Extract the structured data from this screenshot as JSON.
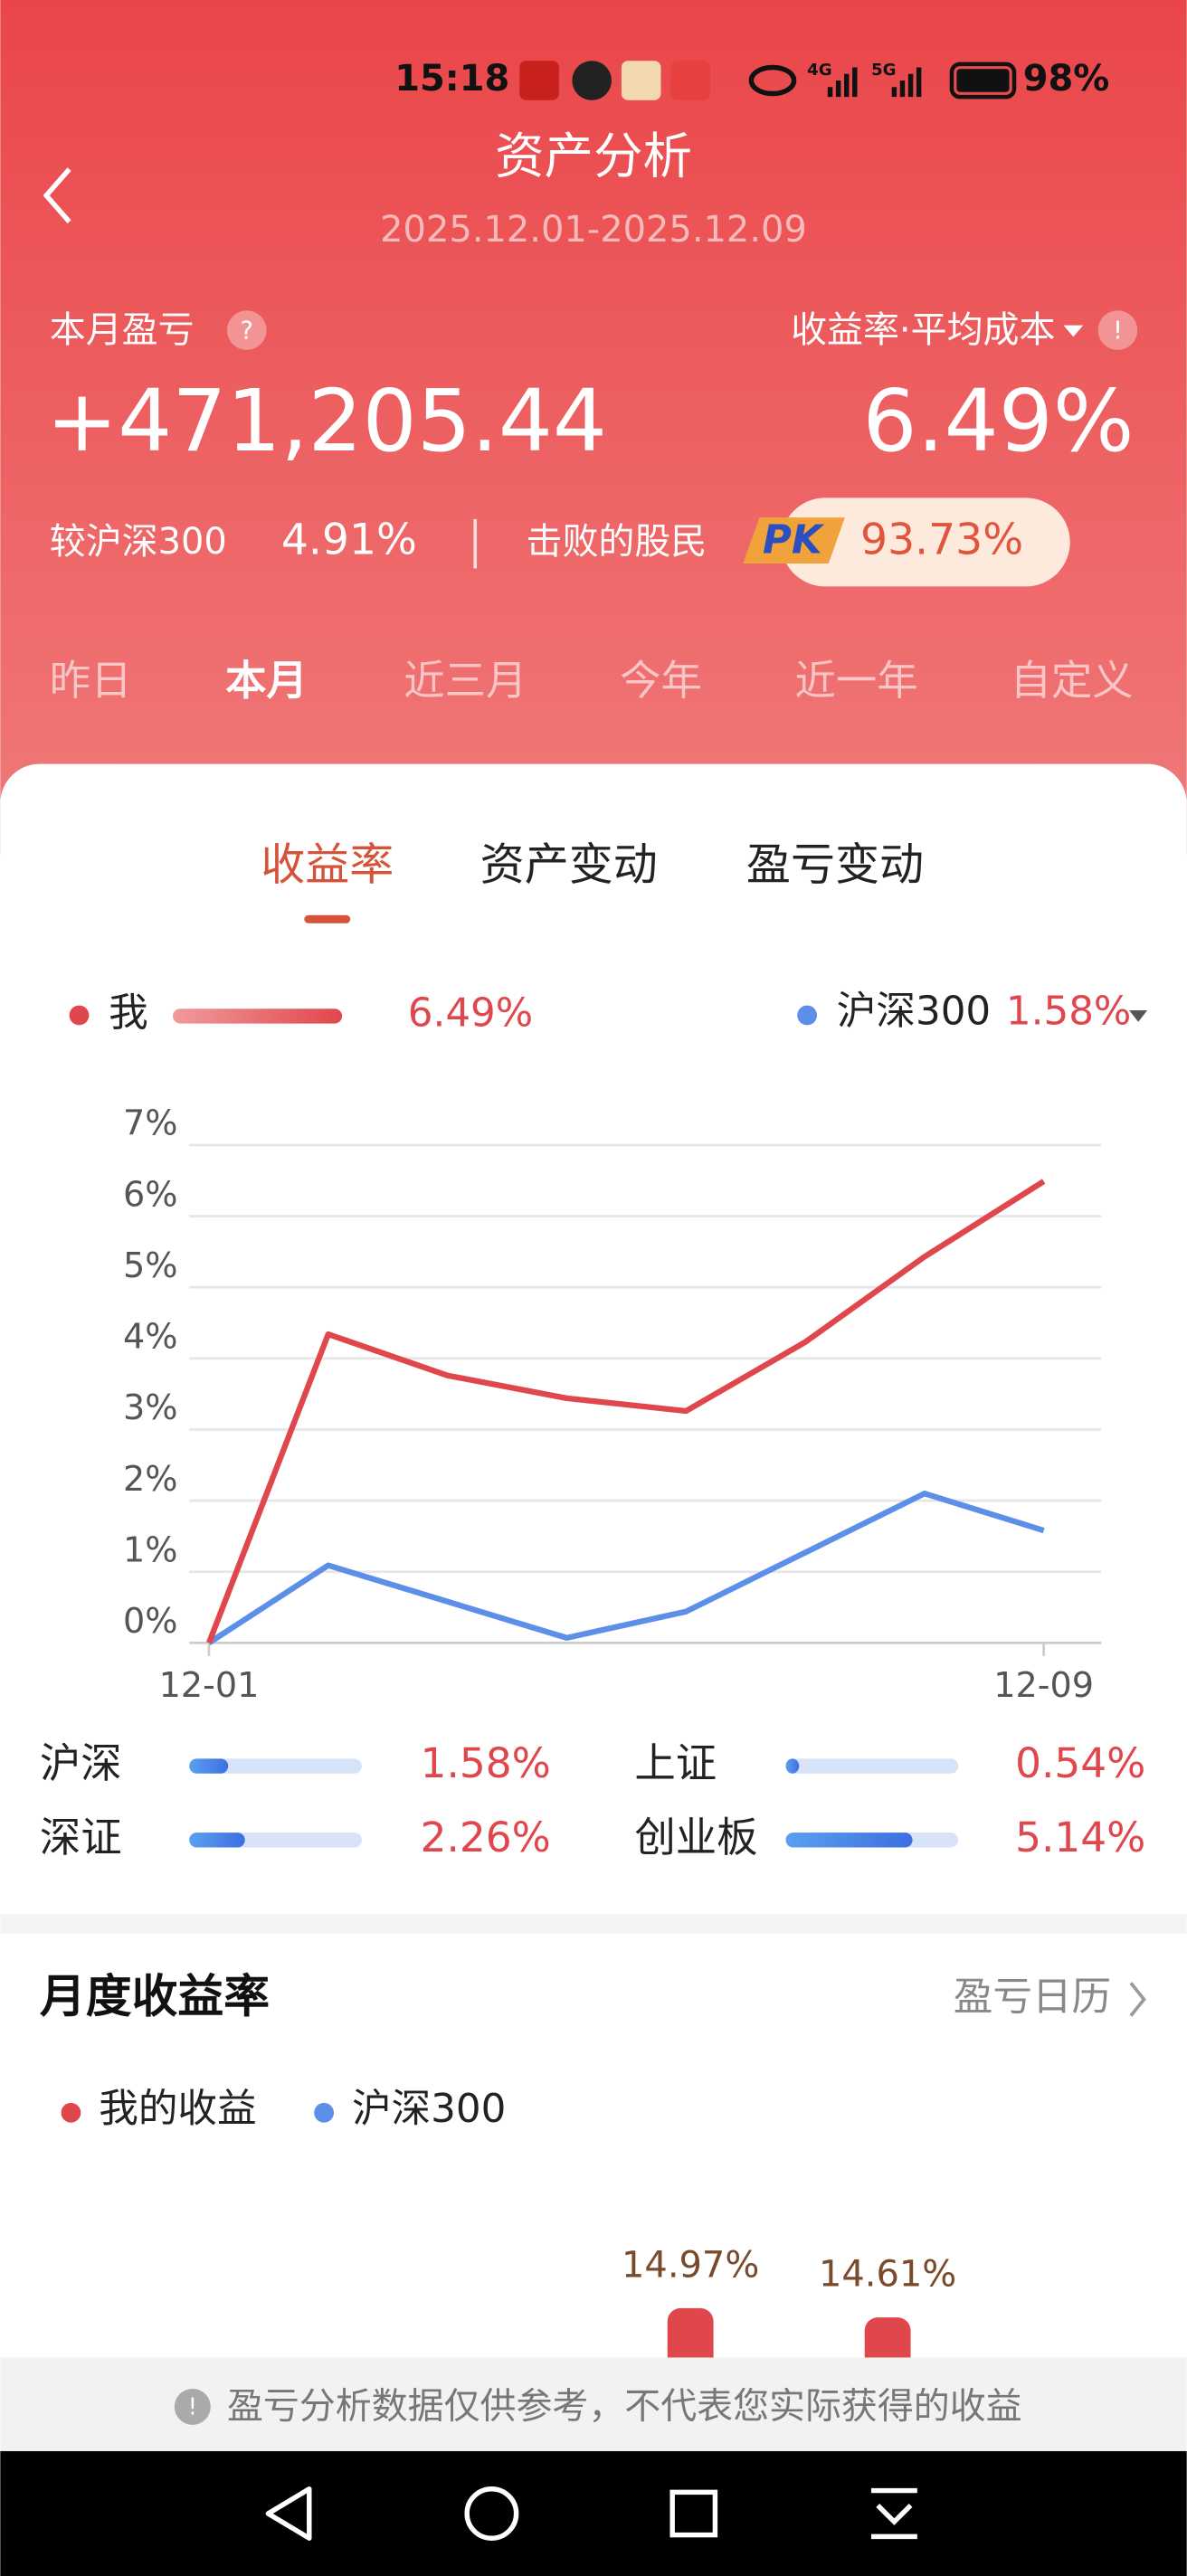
{
  "status_bar": {
    "time": "15:18",
    "signal_4g": "4G",
    "signal_5g": "5G",
    "battery": "98%"
  },
  "header": {
    "title": "资产分析",
    "date_range": "2025.12.01-2025.12.09"
  },
  "summary": {
    "pnl_label": "本月盈亏",
    "pnl_value": "+471,205.44",
    "return_label": "收益率·平均成本",
    "return_value": "6.49%",
    "compare_label": "较沪深300",
    "compare_value": "4.91%",
    "beat_label": "击败的股民",
    "pk": "PK",
    "beat_value": "93.73%"
  },
  "periods": {
    "items": [
      "昨日",
      "本月",
      "近三月",
      "今年",
      "近一年",
      "自定义"
    ],
    "active_index": 1
  },
  "tabs": {
    "items": [
      "收益率",
      "资产变动",
      "盈亏变动"
    ],
    "active_index": 0
  },
  "chart_data": {
    "type": "line",
    "categories": [
      "12-01",
      null,
      null,
      null,
      null,
      null,
      null,
      "12-09"
    ],
    "series": [
      {
        "name": "我",
        "color": "#e0474c",
        "legend_value": "6.49%",
        "values": [
          0,
          4.34,
          3.76,
          3.44,
          3.26,
          4.23,
          5.43,
          6.49
        ]
      },
      {
        "name": "沪深300",
        "color": "#5b8fe8",
        "legend_value": "1.58%",
        "values": [
          0,
          1.09,
          0.58,
          0.07,
          0.44,
          1.27,
          2.1,
          1.58
        ]
      }
    ],
    "ylim": [
      0,
      7
    ],
    "yticks": [
      {
        "value": 0,
        "label": "0%"
      },
      {
        "value": 1,
        "label": "1%"
      },
      {
        "value": 2,
        "label": "2%"
      },
      {
        "value": 3,
        "label": "3%"
      },
      {
        "value": 4,
        "label": "4%"
      },
      {
        "value": 5,
        "label": "5%"
      },
      {
        "value": 6,
        "label": "6%"
      },
      {
        "value": 7,
        "label": "7%"
      }
    ],
    "grid": true
  },
  "indices": [
    {
      "name": "沪深",
      "value": 1.58,
      "value_label": "1.58%"
    },
    {
      "name": "上证",
      "value": 0.54,
      "value_label": "0.54%"
    },
    {
      "name": "深证",
      "value": 2.26,
      "value_label": "2.26%"
    },
    {
      "name": "创业板",
      "value": 5.14,
      "value_label": "5.14%"
    }
  ],
  "monthly": {
    "title": "月度收益率",
    "link": "盈亏日历",
    "legend": [
      {
        "name": "我的收益",
        "color": "#e0474c"
      },
      {
        "name": "沪深300",
        "color": "#5b8fe8"
      }
    ],
    "bars": [
      {
        "value": 14.97,
        "value_label": "14.97%"
      },
      {
        "value": 14.61,
        "value_label": "14.61%"
      }
    ]
  },
  "footer": {
    "notice": "盈亏分析数据仅供参考，不代表您实际获得的收益"
  }
}
